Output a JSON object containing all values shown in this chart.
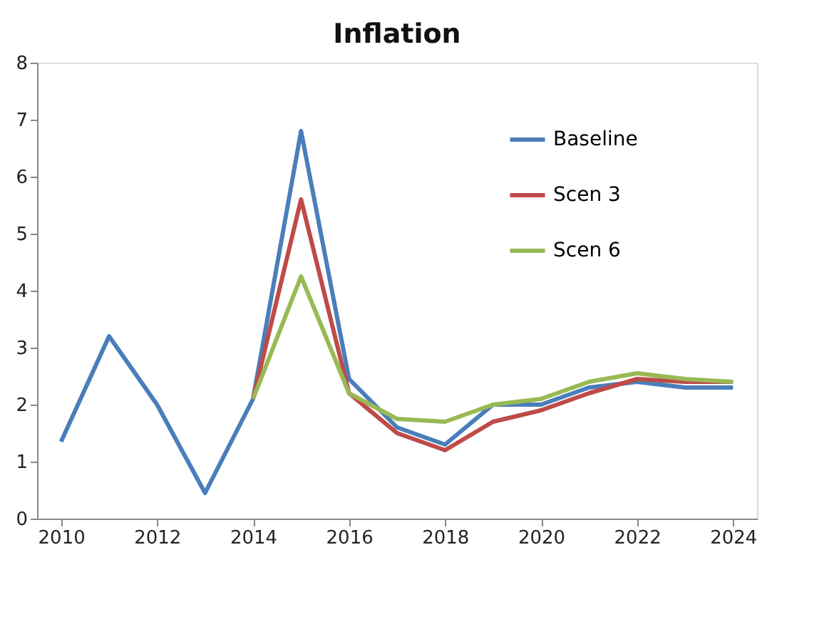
{
  "chart_data": {
    "type": "line",
    "title": "Inflation",
    "xlim": [
      2009.5,
      2024.5
    ],
    "xticks": [
      2010,
      2012,
      2014,
      2016,
      2018,
      2020,
      2022,
      2024
    ],
    "ylim": [
      0,
      8
    ],
    "yticks": [
      0,
      1,
      2,
      3,
      4,
      5,
      6,
      7,
      8
    ],
    "grid": false,
    "legend": "top right",
    "marker": "none",
    "line_style": "solid",
    "series": [
      {
        "name": "Baseline",
        "color": "#4a7ebb",
        "x": [
          2010,
          2011,
          2012,
          2013,
          2014,
          2015,
          2016,
          2017,
          2018,
          2019,
          2020,
          2021,
          2022,
          2023,
          2024
        ],
        "values": [
          1.35,
          3.2,
          2.0,
          0.45,
          2.1,
          6.8,
          2.45,
          1.6,
          1.3,
          2.0,
          2.0,
          2.3,
          2.4,
          2.3,
          2.3
        ]
      },
      {
        "name": "Scen 3",
        "color": "#be4b48",
        "x": [
          2014,
          2015,
          2016,
          2017,
          2018,
          2019,
          2020,
          2021,
          2022,
          2023,
          2024
        ],
        "values": [
          2.1,
          5.6,
          2.2,
          1.5,
          1.2,
          1.7,
          1.9,
          2.2,
          2.45,
          2.4,
          2.4
        ]
      },
      {
        "name": "Scen 6",
        "color": "#98b954",
        "x": [
          2014,
          2015,
          2016,
          2017,
          2018,
          2019,
          2020,
          2021,
          2022,
          2023,
          2024
        ],
        "values": [
          2.1,
          4.25,
          2.2,
          1.75,
          1.7,
          2.0,
          2.1,
          2.4,
          2.55,
          2.45,
          2.4
        ]
      }
    ]
  }
}
